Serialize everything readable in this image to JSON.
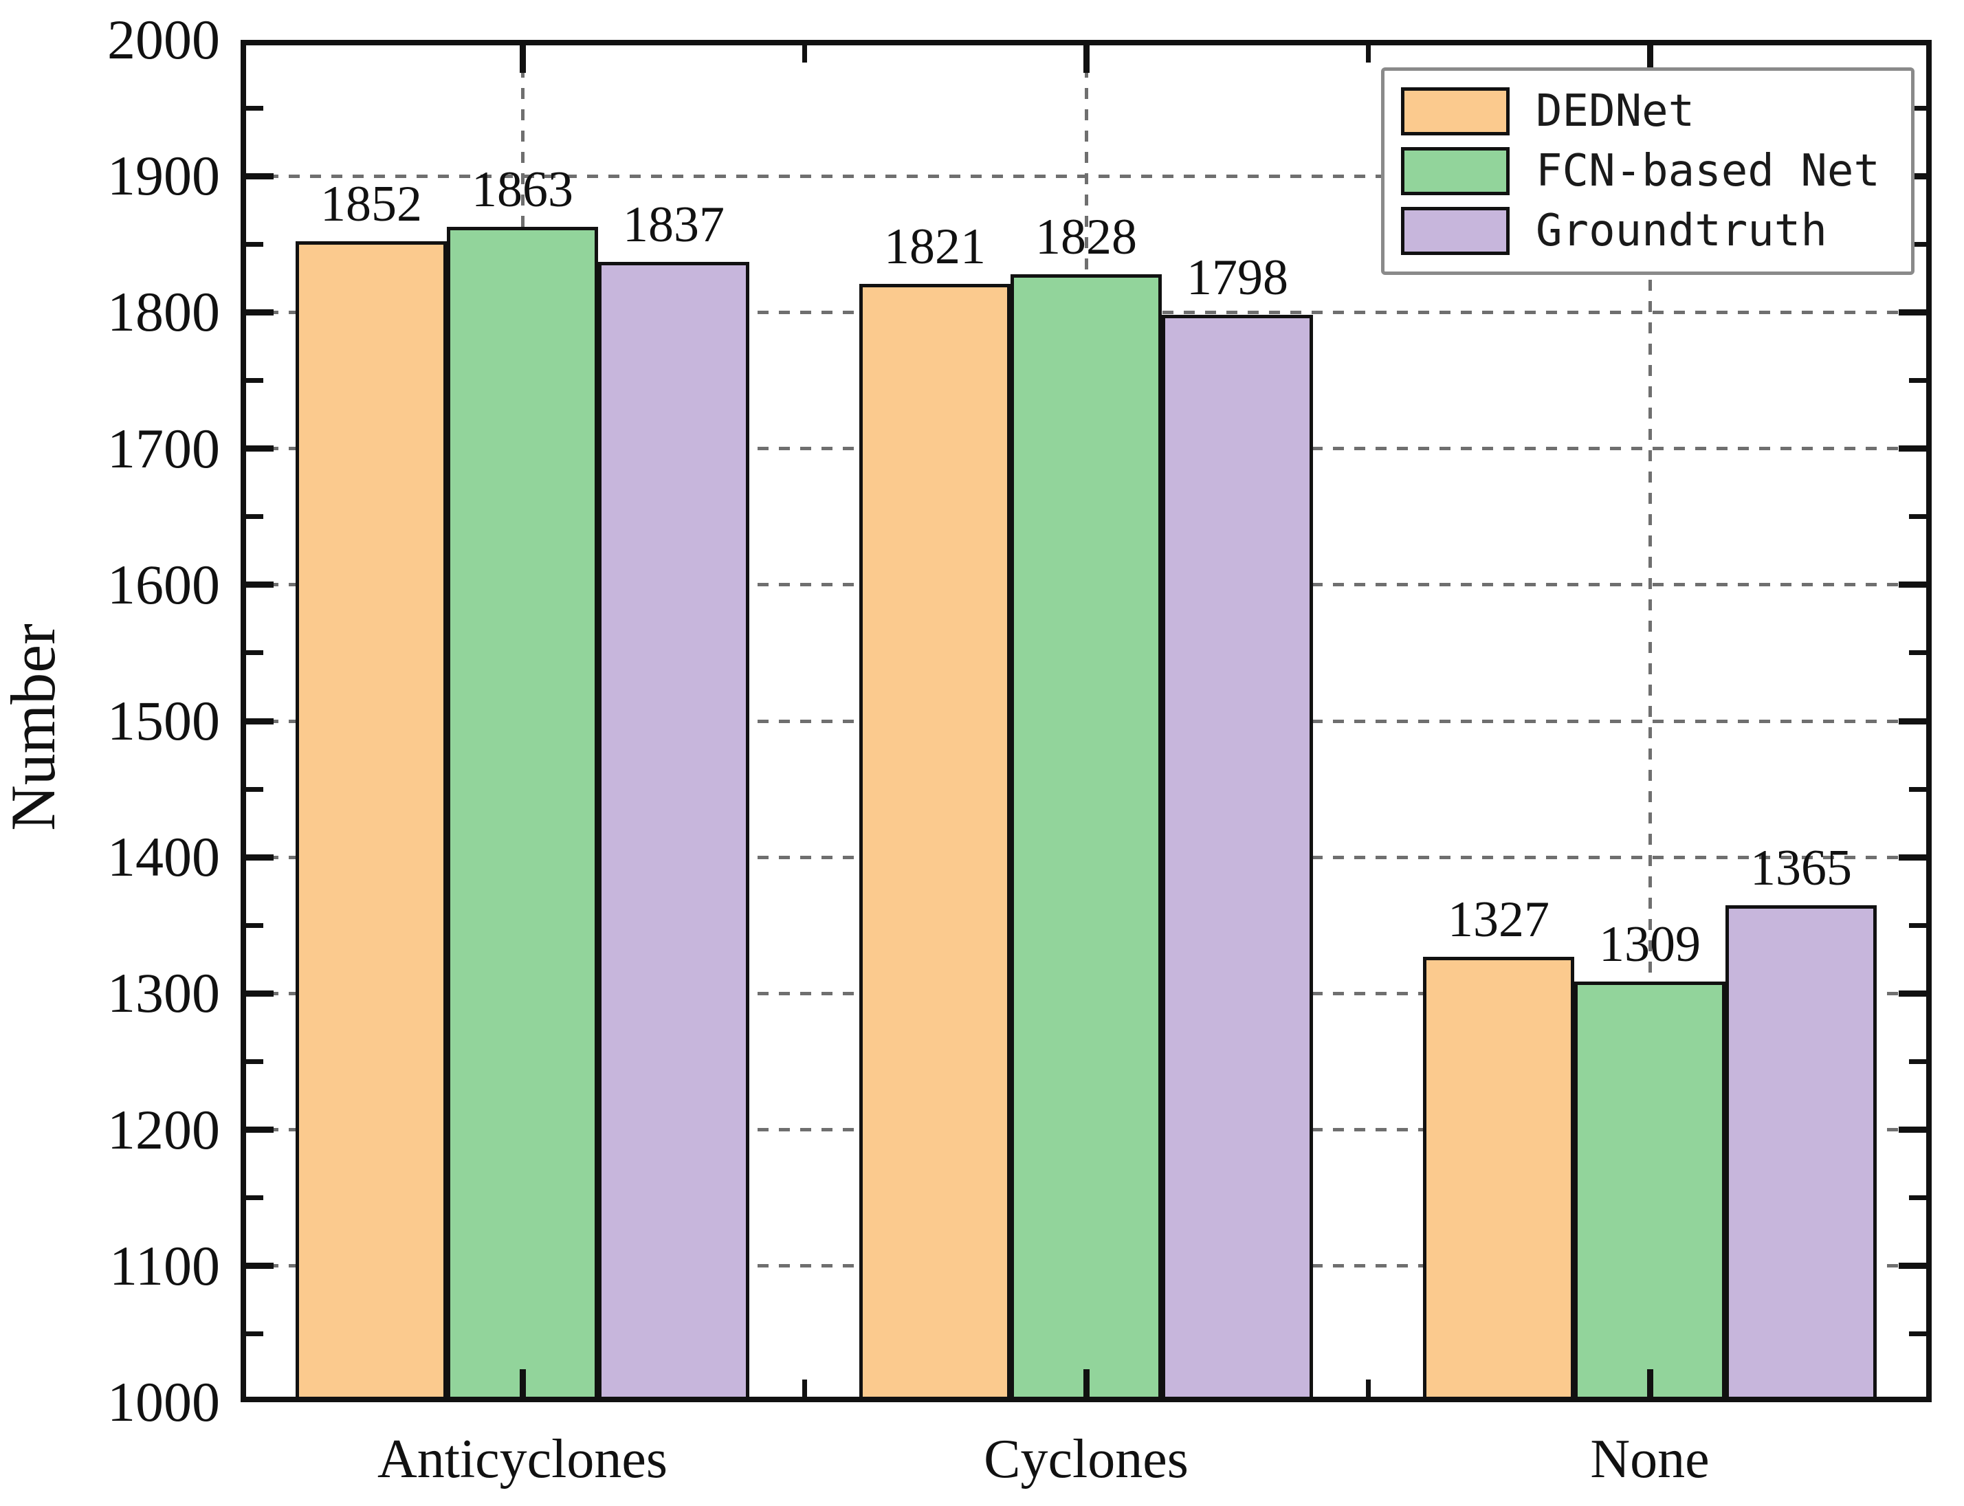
{
  "chart_data": {
    "type": "bar",
    "title": "",
    "categories": [
      "Anticyclones",
      "Cyclones",
      "None"
    ],
    "series": [
      {
        "name": "DEDNet",
        "color": "#FBCA8E",
        "values": [
          1852,
          1821,
          1327
        ]
      },
      {
        "name": "FCN-based Net",
        "color": "#92D49B",
        "values": [
          1863,
          1828,
          1309
        ]
      },
      {
        "name": "Groundtruth",
        "color": "#C7B6DC",
        "values": [
          1837,
          1798,
          1365
        ]
      }
    ],
    "xlabel": "",
    "ylabel": "Number",
    "ylim": [
      1000,
      2000
    ],
    "ytick_major_step": 100,
    "ytick_minor_step": 50,
    "ytick_labels": [
      "1000",
      "1100",
      "1200",
      "1300",
      "1400",
      "1500",
      "1600",
      "1700",
      "1800",
      "1900",
      "2000"
    ],
    "grid": "dashed",
    "grid_color": "#6f6f6f",
    "bar_edge_color": "#111111",
    "legend_position": "top-right",
    "legend_border_color": "#8a8a8a",
    "bar_value_labels_shown": true
  }
}
